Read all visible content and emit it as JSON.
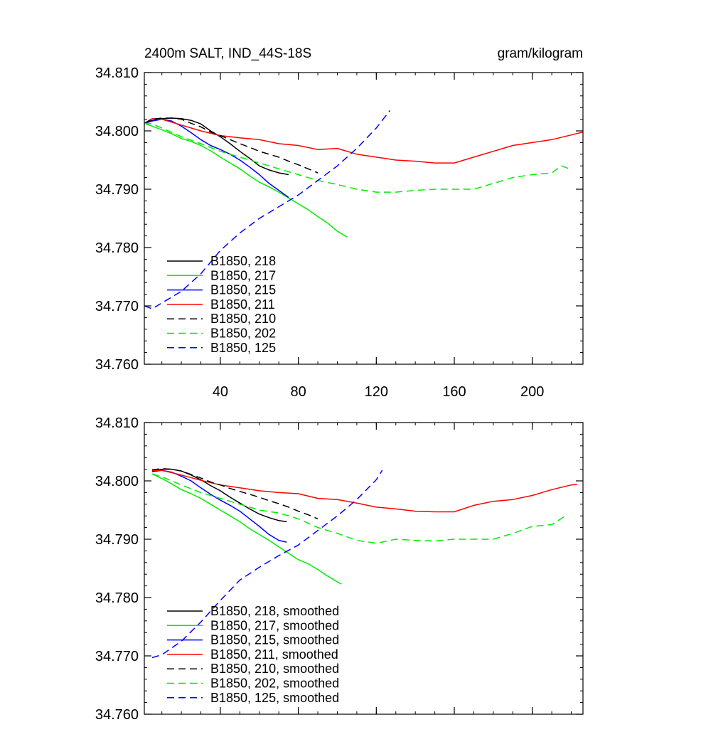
{
  "chart_data": [
    {
      "type": "line",
      "title": "2400m SALT, IND_44S-18S",
      "units": "gram/kilogram",
      "xlabel": "",
      "ylabel": "",
      "xlim": [
        1,
        226
      ],
      "ylim": [
        34.76,
        34.81
      ],
      "xticks": [
        40,
        80,
        120,
        160,
        200
      ],
      "xtick_labels": [
        "40",
        "80",
        "120",
        "160",
        "200"
      ],
      "yticks": [
        34.76,
        34.77,
        34.78,
        34.79,
        34.8,
        34.81
      ],
      "ytick_labels": [
        "34.760",
        "34.770",
        "34.780",
        "34.790",
        "34.800",
        "34.810"
      ],
      "grid": false,
      "legend_position": "bottom-left",
      "series": [
        {
          "name": "B1850, 218",
          "color": "#000000",
          "dash": "solid",
          "x": [
            1,
            5,
            10,
            15,
            20,
            25,
            30,
            35,
            40,
            45,
            50,
            55,
            60,
            65,
            70,
            75
          ],
          "y": [
            34.8012,
            34.8018,
            34.8021,
            34.8022,
            34.8021,
            34.8018,
            34.8012,
            34.8,
            34.799,
            34.7978,
            34.7965,
            34.7953,
            34.794,
            34.7933,
            34.7928,
            34.7925
          ]
        },
        {
          "name": "B1850, 217",
          "color": "#00ee00",
          "dash": "solid",
          "x": [
            1,
            5,
            10,
            15,
            20,
            25,
            30,
            35,
            40,
            45,
            50,
            55,
            60,
            65,
            70,
            75,
            80,
            85,
            90,
            95,
            100,
            105
          ],
          "y": [
            34.8013,
            34.8008,
            34.8002,
            34.7995,
            34.7987,
            34.7982,
            34.7975,
            34.7966,
            34.7955,
            34.7945,
            34.7935,
            34.7923,
            34.7912,
            34.7904,
            34.7895,
            34.7885,
            34.7875,
            34.7865,
            34.7853,
            34.7842,
            34.7828,
            34.7818
          ]
        },
        {
          "name": "B1850, 215",
          "color": "#0000ff",
          "dash": "solid",
          "x": [
            1,
            5,
            10,
            15,
            20,
            25,
            30,
            35,
            40,
            45,
            50,
            55,
            60,
            65,
            70,
            75
          ],
          "y": [
            34.8013,
            34.8017,
            34.802,
            34.8017,
            34.8008,
            34.7997,
            34.7985,
            34.7975,
            34.7968,
            34.796,
            34.795,
            34.7938,
            34.7925,
            34.791,
            34.7898,
            34.7886
          ]
        },
        {
          "name": "B1850, 211",
          "color": "#ff0000",
          "dash": "solid",
          "x": [
            1,
            5,
            10,
            20,
            30,
            40,
            50,
            60,
            70,
            80,
            90,
            100,
            110,
            120,
            130,
            140,
            150,
            160,
            170,
            180,
            190,
            200,
            210,
            220,
            226
          ],
          "y": [
            34.8013,
            34.8021,
            34.802,
            34.801,
            34.8,
            34.7992,
            34.7988,
            34.7985,
            34.7978,
            34.7975,
            34.7968,
            34.797,
            34.796,
            34.7955,
            34.795,
            34.7948,
            34.7945,
            34.7945,
            34.7955,
            34.7965,
            34.7975,
            34.798,
            34.7985,
            34.7993,
            34.7998
          ]
        },
        {
          "name": "B1850, 210",
          "color": "#000000",
          "dash": "dashed",
          "x": [
            1,
            5,
            10,
            15,
            20,
            25,
            30,
            35,
            40,
            45,
            50,
            55,
            60,
            65,
            70,
            75,
            80,
            85,
            90
          ],
          "y": [
            34.8013,
            34.802,
            34.8022,
            34.8022,
            34.802,
            34.8013,
            34.8007,
            34.7998,
            34.7992,
            34.7985,
            34.7978,
            34.7972,
            34.7965,
            34.796,
            34.7955,
            34.7948,
            34.7942,
            34.7935,
            34.7928
          ]
        },
        {
          "name": "B1850, 202",
          "color": "#00ee00",
          "dash": "dashed",
          "x": [
            1,
            5,
            10,
            20,
            30,
            40,
            50,
            60,
            70,
            80,
            90,
            100,
            110,
            120,
            130,
            140,
            150,
            160,
            170,
            180,
            190,
            200,
            210,
            215,
            219
          ],
          "y": [
            34.8013,
            34.8012,
            34.8005,
            34.799,
            34.7978,
            34.7965,
            34.7955,
            34.7945,
            34.7935,
            34.7925,
            34.7915,
            34.7908,
            34.79,
            34.7895,
            34.7895,
            34.7898,
            34.79,
            34.79,
            34.79,
            34.791,
            34.792,
            34.7925,
            34.7928,
            34.794,
            34.7935
          ]
        },
        {
          "name": "B1850, 125",
          "color": "#0000ff",
          "dash": "dashed",
          "x": [
            1,
            5,
            10,
            20,
            30,
            40,
            50,
            60,
            70,
            80,
            90,
            100,
            110,
            120,
            127
          ],
          "y": [
            34.77,
            34.7695,
            34.7705,
            34.7725,
            34.7755,
            34.7795,
            34.7825,
            34.785,
            34.787,
            34.789,
            34.7915,
            34.794,
            34.797,
            34.8005,
            34.8035
          ]
        }
      ]
    },
    {
      "type": "line",
      "title": "",
      "xlabel": "",
      "ylabel": "",
      "xlim": [
        1,
        226
      ],
      "ylim": [
        34.76,
        34.81
      ],
      "xticks": [
        40,
        80,
        120,
        160,
        200
      ],
      "yticks": [
        34.76,
        34.77,
        34.78,
        34.79,
        34.8,
        34.81
      ],
      "ytick_labels": [
        "34.760",
        "34.770",
        "34.780",
        "34.790",
        "34.800",
        "34.810"
      ],
      "grid": false,
      "legend_position": "bottom-left",
      "series": [
        {
          "name": "B1850, 218, smoothed",
          "color": "#000000",
          "dash": "solid",
          "x": [
            5,
            10,
            15,
            20,
            25,
            30,
            35,
            40,
            45,
            50,
            55,
            60,
            65,
            70,
            74
          ],
          "y": [
            34.8017,
            34.802,
            34.802,
            34.8017,
            34.801,
            34.8002,
            34.7992,
            34.7983,
            34.7972,
            34.7962,
            34.7952,
            34.7943,
            34.7937,
            34.7932,
            34.793
          ]
        },
        {
          "name": "B1850, 217, smoothed",
          "color": "#00ee00",
          "dash": "solid",
          "x": [
            5,
            10,
            15,
            20,
            25,
            30,
            35,
            40,
            45,
            50,
            55,
            60,
            65,
            70,
            75,
            80,
            85,
            90,
            95,
            100,
            102
          ],
          "y": [
            34.8012,
            34.8004,
            34.7995,
            34.7985,
            34.7978,
            34.797,
            34.796,
            34.795,
            34.794,
            34.793,
            34.7918,
            34.7908,
            34.7898,
            34.7887,
            34.7876,
            34.7865,
            34.7858,
            34.7848,
            34.7837,
            34.7827,
            34.7823
          ]
        },
        {
          "name": "B1850, 215, smoothed",
          "color": "#0000ff",
          "dash": "solid",
          "x": [
            5,
            10,
            15,
            20,
            25,
            30,
            35,
            40,
            45,
            50,
            55,
            60,
            65,
            70,
            74
          ],
          "y": [
            34.8016,
            34.8018,
            34.8015,
            34.8008,
            34.8,
            34.7988,
            34.7977,
            34.7967,
            34.7958,
            34.7948,
            34.7935,
            34.7922,
            34.7908,
            34.7898,
            34.7895
          ]
        },
        {
          "name": "B1850, 211, smoothed",
          "color": "#ff0000",
          "dash": "solid",
          "x": [
            5,
            10,
            20,
            30,
            40,
            50,
            60,
            70,
            80,
            90,
            100,
            110,
            120,
            130,
            140,
            150,
            160,
            170,
            180,
            190,
            200,
            210,
            220,
            223
          ],
          "y": [
            34.8018,
            34.8018,
            34.801,
            34.8001,
            34.7993,
            34.7988,
            34.7983,
            34.798,
            34.7978,
            34.797,
            34.7968,
            34.7962,
            34.7955,
            34.7952,
            34.7948,
            34.7947,
            34.7947,
            34.7958,
            34.7965,
            34.7968,
            34.7975,
            34.7985,
            34.7993,
            34.7994
          ]
        },
        {
          "name": "B1850, 210, smoothed",
          "color": "#000000",
          "dash": "dashed",
          "x": [
            5,
            10,
            15,
            20,
            25,
            30,
            35,
            40,
            45,
            50,
            55,
            60,
            65,
            70,
            75,
            80,
            85,
            90
          ],
          "y": [
            34.8019,
            34.8021,
            34.802,
            34.8017,
            34.8011,
            34.8005,
            34.7998,
            34.7993,
            34.7987,
            34.7982,
            34.7977,
            34.7972,
            34.7966,
            34.7961,
            34.7955,
            34.7948,
            34.7942,
            34.7935
          ]
        },
        {
          "name": "B1850, 202, smoothed",
          "color": "#00ee00",
          "dash": "dashed",
          "x": [
            5,
            10,
            20,
            30,
            40,
            50,
            60,
            70,
            80,
            90,
            100,
            110,
            120,
            130,
            140,
            150,
            160,
            170,
            180,
            190,
            200,
            210,
            217
          ],
          "y": [
            34.8012,
            34.8007,
            34.7993,
            34.798,
            34.797,
            34.796,
            34.795,
            34.7945,
            34.7935,
            34.792,
            34.791,
            34.7898,
            34.7893,
            34.79,
            34.7898,
            34.7897,
            34.79,
            34.79,
            34.79,
            34.791,
            34.7922,
            34.7925,
            34.794
          ]
        },
        {
          "name": "B1850, 125, smoothed",
          "color": "#0000ff",
          "dash": "dashed",
          "x": [
            5,
            10,
            20,
            30,
            40,
            50,
            60,
            70,
            80,
            90,
            100,
            110,
            120,
            123
          ],
          "y": [
            34.7697,
            34.7702,
            34.7725,
            34.7758,
            34.7795,
            34.783,
            34.7852,
            34.7872,
            34.789,
            34.7915,
            34.794,
            34.7968,
            34.8002,
            34.8018
          ]
        }
      ]
    }
  ]
}
